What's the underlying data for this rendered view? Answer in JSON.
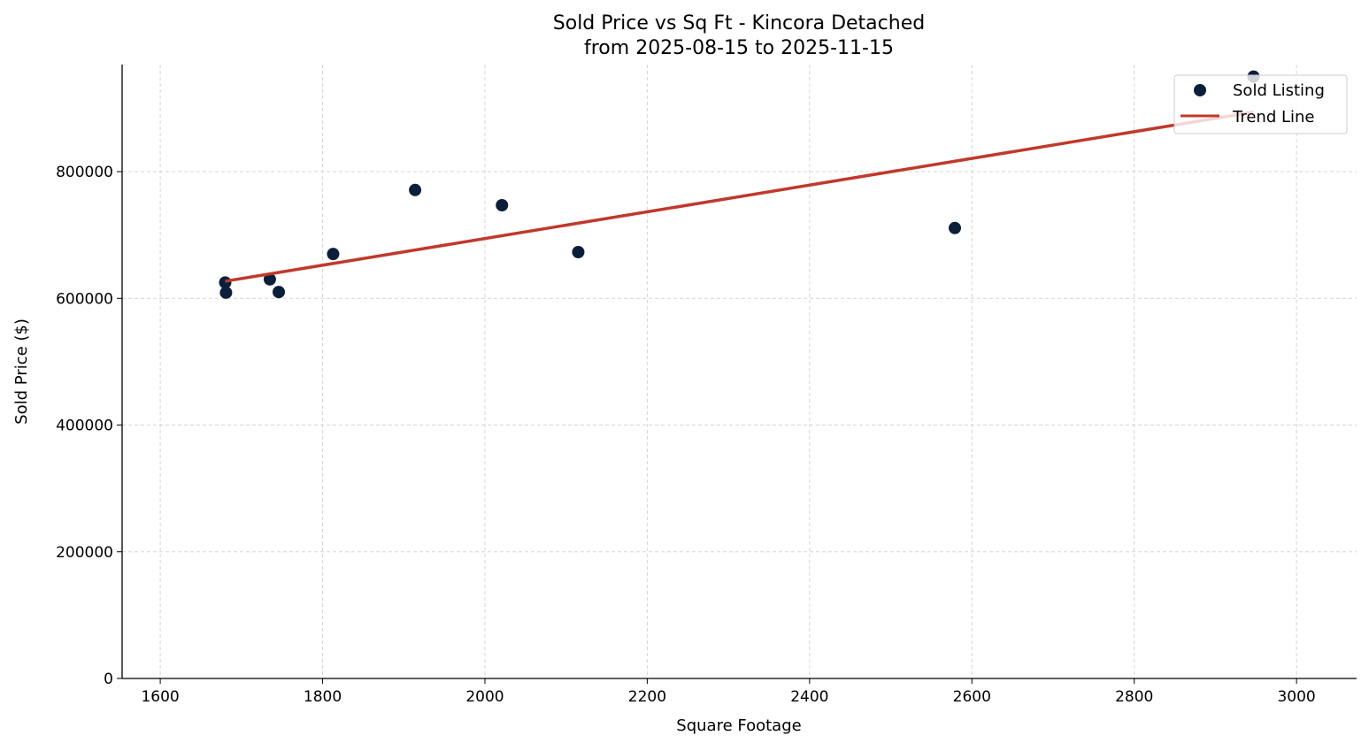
{
  "chart_data": {
    "type": "scatter",
    "title": "Sold Price vs Sq Ft - Kincora Detached",
    "subtitle": "from 2025-08-15 to 2025-11-15",
    "xlabel": "Square Footage",
    "ylabel": "Sold Price ($)",
    "xlim": [
      1553,
      3074
    ],
    "ylim": [
      0,
      969000
    ],
    "xticks": [
      1600,
      1800,
      2000,
      2200,
      2400,
      2600,
      2800,
      3000
    ],
    "yticks": [
      0,
      200000,
      400000,
      600000,
      800000
    ],
    "grid": true,
    "legend_position": "top-right",
    "series": [
      {
        "name": "Sold Listing",
        "type": "scatter",
        "color": "#0b1f3a",
        "points": [
          {
            "x": 1680,
            "y": 625000
          },
          {
            "x": 1681,
            "y": 609000
          },
          {
            "x": 1735,
            "y": 630000
          },
          {
            "x": 1746,
            "y": 610000
          },
          {
            "x": 1813,
            "y": 670000
          },
          {
            "x": 1914,
            "y": 771000
          },
          {
            "x": 2021,
            "y": 747000
          },
          {
            "x": 2115,
            "y": 673000
          },
          {
            "x": 2579,
            "y": 711000
          },
          {
            "x": 2947,
            "y": 950000
          }
        ]
      },
      {
        "name": "Trend Line",
        "type": "line",
        "color": "#c0392b",
        "points": [
          {
            "x": 1680,
            "y": 627000
          },
          {
            "x": 2947,
            "y": 894000
          }
        ]
      }
    ]
  }
}
